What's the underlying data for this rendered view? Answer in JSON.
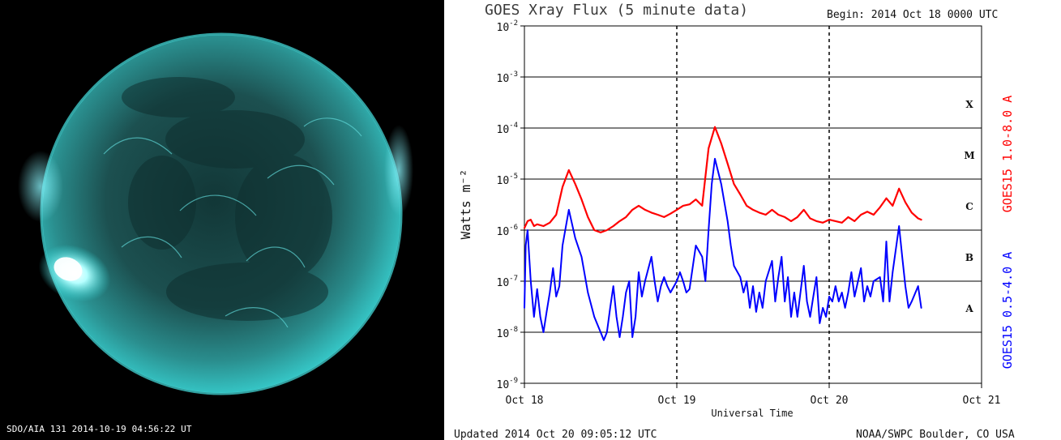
{
  "image_panel": {
    "caption": "SDO/AIA 131    2014-10-19 04:56:22 UT"
  },
  "chart_data": {
    "type": "line",
    "title": "GOES Xray Flux (5 minute data)",
    "begin": "Begin:  2014 Oct 18 0000 UTC",
    "xlabel": "Universal Time",
    "ylabel": "Watts m⁻²",
    "x_range": [
      0,
      72
    ],
    "y_scale": "log",
    "ylim": [
      1e-09,
      0.01
    ],
    "grid": true,
    "x_ticks": [
      {
        "value": 0,
        "label": "Oct 18"
      },
      {
        "value": 24,
        "label": "Oct 19"
      },
      {
        "value": 48,
        "label": "Oct 20"
      },
      {
        "value": 72,
        "label": "Oct 21"
      }
    ],
    "y_ticks": [
      {
        "value": 0.01,
        "base": "10",
        "exp": "-2"
      },
      {
        "value": 0.001,
        "base": "10",
        "exp": "-3"
      },
      {
        "value": 0.0001,
        "base": "10",
        "exp": "-4"
      },
      {
        "value": 1e-05,
        "base": "10",
        "exp": "-5"
      },
      {
        "value": 1e-06,
        "base": "10",
        "exp": "-6"
      },
      {
        "value": 1e-07,
        "base": "10",
        "exp": "-7"
      },
      {
        "value": 1e-08,
        "base": "10",
        "exp": "-8"
      },
      {
        "value": 1e-09,
        "base": "10",
        "exp": "-9"
      }
    ],
    "flare_classes": [
      {
        "label": "X",
        "value": 0.0003
      },
      {
        "label": "M",
        "value": 3e-05
      },
      {
        "label": "C",
        "value": 3e-06
      },
      {
        "label": "B",
        "value": 3e-07
      },
      {
        "label": "A",
        "value": 3e-08
      }
    ],
    "legend": [
      {
        "label": "GOES15 1.0-8.0 A",
        "color": "#ff0000"
      },
      {
        "label": "GOES15 0.5-4.0 A",
        "color": "#0000ff"
      }
    ],
    "series": [
      {
        "name": "GOES15 1.0-8.0 A",
        "color": "#ff0000",
        "points": [
          [
            0.0,
            1.1e-06
          ],
          [
            0.5,
            1.5e-06
          ],
          [
            1.0,
            1.6e-06
          ],
          [
            1.5,
            1.2e-06
          ],
          [
            2.0,
            1.3e-06
          ],
          [
            3.0,
            1.2e-06
          ],
          [
            4.0,
            1.4e-06
          ],
          [
            5.0,
            2e-06
          ],
          [
            6.0,
            7e-06
          ],
          [
            7.0,
            1.5e-05
          ],
          [
            8.0,
            8e-06
          ],
          [
            9.0,
            4e-06
          ],
          [
            10.0,
            1.8e-06
          ],
          [
            11.0,
            1e-06
          ],
          [
            12.0,
            9e-07
          ],
          [
            13.0,
            1e-06
          ],
          [
            14.0,
            1.2e-06
          ],
          [
            15.0,
            1.5e-06
          ],
          [
            16.0,
            1.8e-06
          ],
          [
            17.0,
            2.5e-06
          ],
          [
            18.0,
            3e-06
          ],
          [
            19.0,
            2.5e-06
          ],
          [
            20.0,
            2.2e-06
          ],
          [
            21.0,
            2e-06
          ],
          [
            22.0,
            1.8e-06
          ],
          [
            23.0,
            2.1e-06
          ],
          [
            24.0,
            2.5e-06
          ],
          [
            25.0,
            3e-06
          ],
          [
            26.0,
            3.2e-06
          ],
          [
            27.0,
            4e-06
          ],
          [
            28.0,
            3e-06
          ],
          [
            29.0,
            4e-05
          ],
          [
            30.0,
            0.000105
          ],
          [
            31.0,
            5e-05
          ],
          [
            32.0,
            2e-05
          ],
          [
            33.0,
            8e-06
          ],
          [
            34.0,
            5e-06
          ],
          [
            35.0,
            3e-06
          ],
          [
            36.0,
            2.5e-06
          ],
          [
            37.0,
            2.2e-06
          ],
          [
            38.0,
            2e-06
          ],
          [
            39.0,
            2.5e-06
          ],
          [
            40.0,
            2e-06
          ],
          [
            41.0,
            1.8e-06
          ],
          [
            42.0,
            1.5e-06
          ],
          [
            43.0,
            1.8e-06
          ],
          [
            44.0,
            2.5e-06
          ],
          [
            45.0,
            1.7e-06
          ],
          [
            46.0,
            1.5e-06
          ],
          [
            47.0,
            1.4e-06
          ],
          [
            48.0,
            1.6e-06
          ],
          [
            49.0,
            1.5e-06
          ],
          [
            50.0,
            1.4e-06
          ],
          [
            51.0,
            1.8e-06
          ],
          [
            52.0,
            1.5e-06
          ],
          [
            53.0,
            2e-06
          ],
          [
            54.0,
            2.3e-06
          ],
          [
            55.0,
            2e-06
          ],
          [
            56.0,
            2.8e-06
          ],
          [
            57.0,
            4.2e-06
          ],
          [
            58.0,
            3e-06
          ],
          [
            59.0,
            6.5e-06
          ],
          [
            60.0,
            3.5e-06
          ],
          [
            61.0,
            2.2e-06
          ],
          [
            62.0,
            1.7e-06
          ],
          [
            62.5,
            1.6e-06
          ]
        ]
      },
      {
        "name": "GOES15 0.5-4.0 A",
        "color": "#0000ff",
        "points": [
          [
            0.0,
            3e-08
          ],
          [
            0.2,
            5e-07
          ],
          [
            0.5,
            1e-06
          ],
          [
            1.0,
            1e-07
          ],
          [
            1.5,
            2e-08
          ],
          [
            2.0,
            7e-08
          ],
          [
            2.5,
            2e-08
          ],
          [
            3.0,
            1e-08
          ],
          [
            3.5,
            2.5e-08
          ],
          [
            4.0,
            6e-08
          ],
          [
            4.5,
            1.8e-07
          ],
          [
            5.0,
            5e-08
          ],
          [
            5.5,
            8e-08
          ],
          [
            6.0,
            5e-07
          ],
          [
            7.0,
            2.5e-06
          ],
          [
            8.0,
            7e-07
          ],
          [
            9.0,
            3e-07
          ],
          [
            10.0,
            6e-08
          ],
          [
            11.0,
            2e-08
          ],
          [
            12.0,
            1e-08
          ],
          [
            12.5,
            7e-09
          ],
          [
            13.0,
            1e-08
          ],
          [
            13.5,
            3e-08
          ],
          [
            14.0,
            8e-08
          ],
          [
            14.5,
            2e-08
          ],
          [
            15.0,
            8e-09
          ],
          [
            15.5,
            2e-08
          ],
          [
            16.0,
            6e-08
          ],
          [
            16.5,
            1e-07
          ],
          [
            17.0,
            8e-09
          ],
          [
            17.5,
            2e-08
          ],
          [
            18.0,
            1.5e-07
          ],
          [
            18.5,
            5e-08
          ],
          [
            19.0,
            1e-07
          ],
          [
            20.0,
            3e-07
          ],
          [
            20.5,
            1e-07
          ],
          [
            21.0,
            4e-08
          ],
          [
            21.5,
            8e-08
          ],
          [
            22.0,
            1.2e-07
          ],
          [
            22.5,
            8e-08
          ],
          [
            23.0,
            6e-08
          ],
          [
            24.0,
            1e-07
          ],
          [
            24.5,
            1.5e-07
          ],
          [
            25.0,
            1e-07
          ],
          [
            25.5,
            6e-08
          ],
          [
            26.0,
            7e-08
          ],
          [
            27.0,
            5e-07
          ],
          [
            28.0,
            3e-07
          ],
          [
            28.5,
            1e-07
          ],
          [
            29.0,
            1e-06
          ],
          [
            29.5,
            8e-06
          ],
          [
            30.0,
            2.5e-05
          ],
          [
            31.0,
            8e-06
          ],
          [
            32.0,
            1.5e-06
          ],
          [
            32.5,
            5e-07
          ],
          [
            33.0,
            2e-07
          ],
          [
            34.0,
            1.2e-07
          ],
          [
            34.5,
            6e-08
          ],
          [
            35.0,
            1e-07
          ],
          [
            35.5,
            3e-08
          ],
          [
            36.0,
            8e-08
          ],
          [
            36.5,
            2.5e-08
          ],
          [
            37.0,
            6e-08
          ],
          [
            37.5,
            3e-08
          ],
          [
            38.0,
            1e-07
          ],
          [
            39.0,
            2.5e-07
          ],
          [
            39.5,
            4e-08
          ],
          [
            40.0,
            1.2e-07
          ],
          [
            40.5,
            3e-07
          ],
          [
            41.0,
            4e-08
          ],
          [
            41.5,
            1.2e-07
          ],
          [
            42.0,
            2e-08
          ],
          [
            42.5,
            6e-08
          ],
          [
            43.0,
            2e-08
          ],
          [
            44.0,
            2e-07
          ],
          [
            44.5,
            4e-08
          ],
          [
            45.0,
            2e-08
          ],
          [
            45.5,
            5e-08
          ],
          [
            46.0,
            1.2e-07
          ],
          [
            46.5,
            1.5e-08
          ],
          [
            47.0,
            3e-08
          ],
          [
            47.5,
            2e-08
          ],
          [
            48.0,
            5e-08
          ],
          [
            48.5,
            4e-08
          ],
          [
            49.0,
            8e-08
          ],
          [
            49.5,
            4e-08
          ],
          [
            50.0,
            6e-08
          ],
          [
            50.5,
            3e-08
          ],
          [
            51.0,
            6e-08
          ],
          [
            51.5,
            1.5e-07
          ],
          [
            52.0,
            5e-08
          ],
          [
            53.0,
            1.8e-07
          ],
          [
            53.5,
            4e-08
          ],
          [
            54.0,
            8e-08
          ],
          [
            54.5,
            5e-08
          ],
          [
            55.0,
            1e-07
          ],
          [
            56.0,
            1.2e-07
          ],
          [
            56.5,
            4e-08
          ],
          [
            57.0,
            6e-07
          ],
          [
            57.5,
            4e-08
          ],
          [
            58.0,
            1.5e-07
          ],
          [
            59.0,
            1.2e-06
          ],
          [
            59.5,
            3e-07
          ],
          [
            60.0,
            8e-08
          ],
          [
            60.5,
            3e-08
          ],
          [
            61.0,
            4e-08
          ],
          [
            62.0,
            8e-08
          ],
          [
            62.5,
            3e-08
          ]
        ]
      }
    ]
  },
  "footer": {
    "left": "Updated 2014 Oct 20 09:05:12 UTC",
    "right": "NOAA/SWPC Boulder, CO USA"
  }
}
